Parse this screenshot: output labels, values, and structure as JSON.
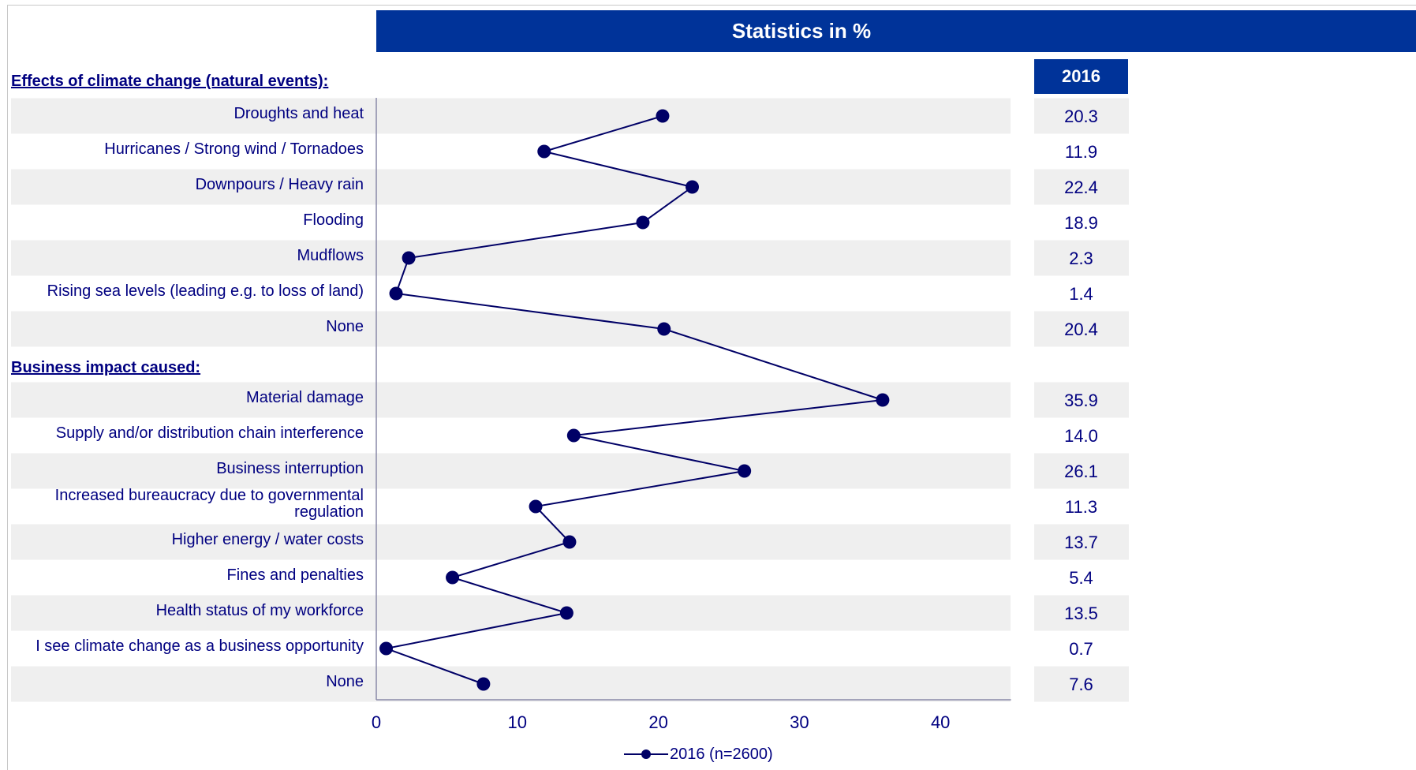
{
  "header": {
    "title": "Statistics in %"
  },
  "table": {
    "year_header": "2016"
  },
  "sections": [
    {
      "title": "Effects of climate change (natural events):"
    },
    {
      "title": "Business impact caused:"
    }
  ],
  "legend": {
    "label": "2016 (n=2600)"
  },
  "colors": {
    "accent": "#003399",
    "marker": "#000066",
    "band": "#efefef",
    "text": "#000080"
  },
  "chart_data": {
    "type": "line",
    "orientation": "horizontal",
    "x_ticks": [
      "0",
      "10",
      "20",
      "30",
      "40"
    ],
    "xlim": [
      0,
      45
    ],
    "categories": [
      "Droughts and heat",
      "Hurricanes / Strong wind / Tornadoes",
      "Downpours / Heavy rain",
      "Flooding",
      "Mudflows",
      "Rising sea levels (leading e.g. to loss of land)",
      "None",
      "Material damage",
      "Supply and/or distribution chain interference",
      "Business interruption",
      "Increased bureaucracy due to governmental regulation",
      "Higher energy / water costs",
      "Fines and penalties",
      "Health status of my workforce",
      "I see climate change as a business opportunity",
      "None"
    ],
    "series": [
      {
        "name": "2016 (n=2600)",
        "values": [
          20.3,
          11.9,
          22.4,
          18.9,
          2.3,
          1.4,
          20.4,
          35.9,
          14.0,
          26.1,
          11.3,
          13.7,
          5.4,
          13.5,
          0.7,
          7.6
        ],
        "value_labels": [
          "20.3",
          "11.9",
          "22.4",
          "18.9",
          "2.3",
          "1.4",
          "20.4",
          "35.9",
          "14.0",
          "26.1",
          "11.3",
          "13.7",
          "5.4",
          "13.5",
          "0.7",
          "7.6"
        ]
      }
    ]
  }
}
